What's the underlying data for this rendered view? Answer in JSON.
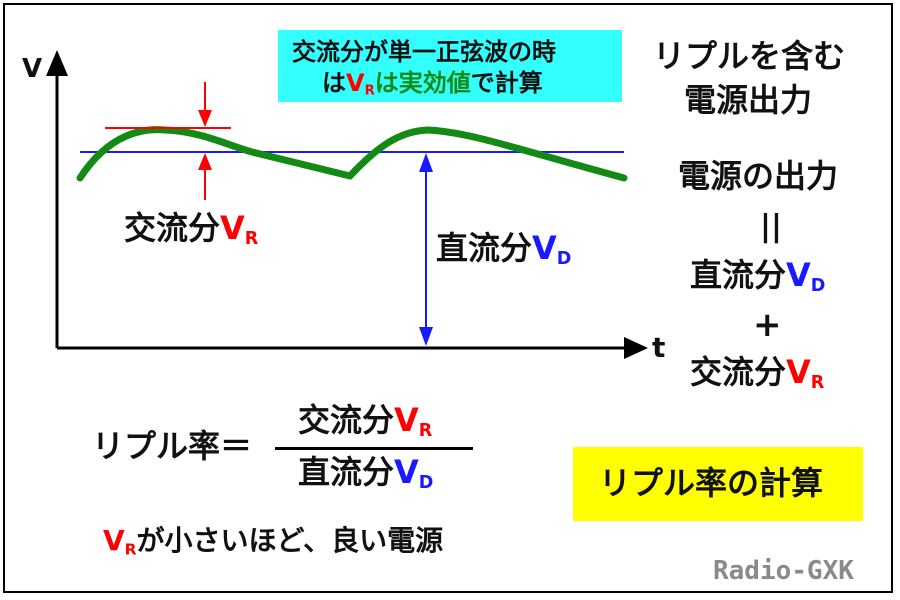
{
  "axes": {
    "y_label": "V",
    "x_label": "t"
  },
  "note": {
    "line1": "交流分が単一正弦波の時",
    "line2_a": "は",
    "line2_v": "V",
    "line2_sub": "R",
    "line2_b": "は実効値",
    "line2_c": "で計算"
  },
  "title_right": {
    "line1": "リプルを含む",
    "line2": "電源出力"
  },
  "equation": {
    "power_output": "電源の出力",
    "equals": "||",
    "dc": "直流分",
    "plus": "+",
    "ac": "交流分"
  },
  "labels": {
    "ac_component": "交流分",
    "dc_component": "直流分",
    "v": "V",
    "sub_r": "R",
    "sub_d": "D"
  },
  "formula": {
    "lhs": "リプル率＝",
    "numerator": "交流分",
    "denominator": "直流分"
  },
  "footer_note": {
    "v": "V",
    "sub": "R",
    "text": "が小さいほど、良い電源"
  },
  "badge": "リプル率の計算",
  "brand": "Radio-GXK",
  "colors": {
    "ripple": "#138a13",
    "dc_line": "#1a1aff",
    "ac_marker": "#ff0000",
    "note_bg": "#33ffff",
    "badge_bg": "#ffff00"
  }
}
